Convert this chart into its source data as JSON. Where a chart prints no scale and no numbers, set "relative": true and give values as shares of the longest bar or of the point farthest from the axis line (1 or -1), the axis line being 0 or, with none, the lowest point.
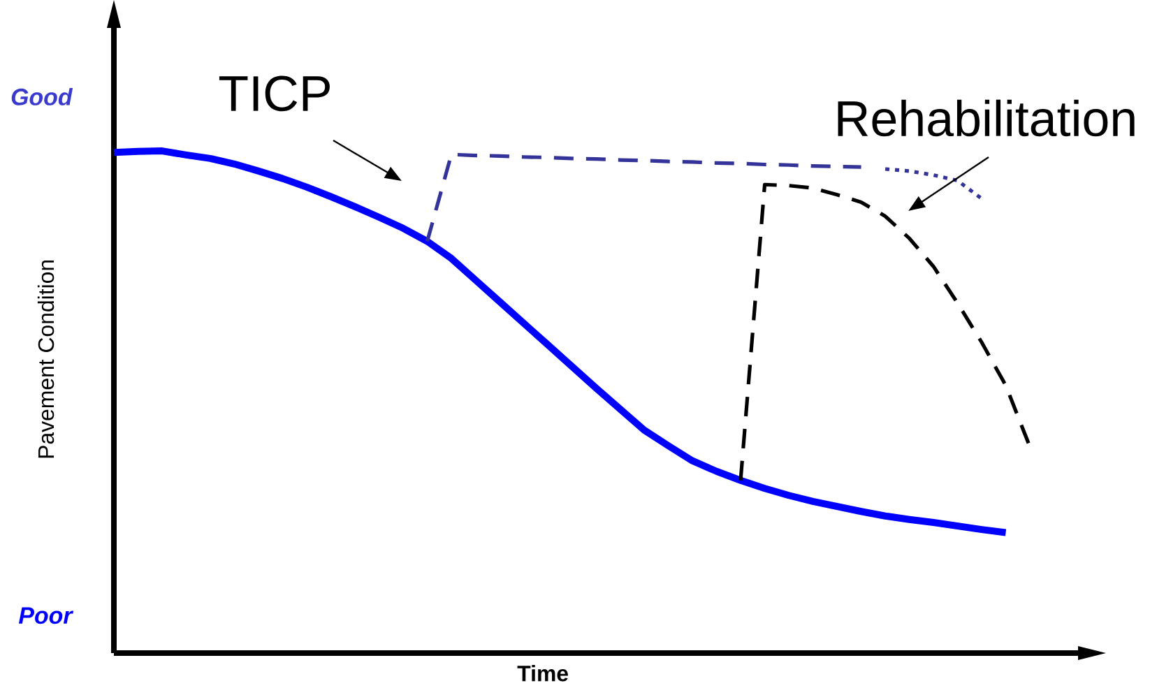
{
  "chart_data": {
    "type": "line",
    "relative": true,
    "xlabel": "Time",
    "ylabel": "Pavement Condition",
    "categories": [
      null,
      null,
      null,
      null,
      null,
      null,
      null,
      null,
      null,
      null,
      null,
      null,
      null,
      null,
      null,
      null,
      null,
      null,
      null,
      null,
      null,
      null,
      null,
      null,
      null,
      null,
      null,
      null,
      null,
      null,
      null,
      null,
      null,
      null,
      null,
      null,
      null,
      null,
      null,
      null,
      null
    ],
    "series": [
      {
        "color": "#0000ff",
        "line_style": "solid",
        "values": [
          0.997,
          0.999,
          1.0,
          0.992,
          0.985,
          0.974,
          0.96,
          0.945,
          0.928,
          0.909,
          0.889,
          0.868,
          0.846,
          0.82,
          0.786,
          0.743,
          0.7,
          0.657,
          0.614,
          0.571,
          0.528,
          0.486,
          0.444,
          0.413,
          0.383,
          0.362,
          0.344,
          0.328,
          0.314,
          0.302,
          0.292,
          0.282,
          0.273,
          0.266,
          0.26,
          0.253,
          0.246,
          0.24,
          null,
          null,
          null
        ]
      },
      {
        "color": "#333399",
        "line_style": "dashed",
        "values": [
          null,
          null,
          null,
          null,
          null,
          null,
          null,
          null,
          null,
          null,
          null,
          null,
          null,
          0.82,
          0.993,
          0.991,
          0.99,
          0.988,
          0.987,
          0.985,
          0.984,
          0.982,
          0.981,
          0.979,
          0.978,
          0.976,
          0.975,
          0.973,
          0.972,
          0.97,
          0.969,
          0.968,
          null,
          null,
          null,
          null,
          null,
          null,
          null,
          null,
          null
        ]
      },
      {
        "color": "#333399",
        "line_style": "dotted",
        "values": [
          null,
          null,
          null,
          null,
          null,
          null,
          null,
          null,
          null,
          null,
          null,
          null,
          null,
          null,
          null,
          null,
          null,
          null,
          null,
          null,
          null,
          null,
          null,
          null,
          null,
          null,
          null,
          null,
          null,
          null,
          null,
          null,
          0.964,
          0.96,
          0.952,
          0.941,
          0.905,
          null,
          null,
          null,
          null
        ]
      },
      {
        "color": "#000000",
        "line_style": "dashed",
        "values": [
          null,
          null,
          null,
          null,
          null,
          null,
          null,
          null,
          null,
          null,
          null,
          null,
          null,
          null,
          null,
          null,
          null,
          null,
          null,
          null,
          null,
          null,
          null,
          null,
          null,
          null,
          0.344,
          0.933,
          0.931,
          0.926,
          0.913,
          0.898,
          0.87,
          0.826,
          0.77,
          0.697,
          0.619,
          0.533,
          0.411,
          null,
          null
        ]
      }
    ],
    "annotations": [
      "TICP",
      "Rehabilitation",
      "Good",
      "Poor"
    ]
  }
}
